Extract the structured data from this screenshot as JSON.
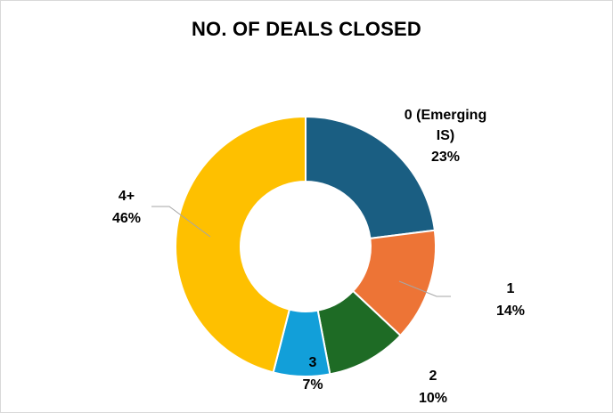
{
  "chart_data": {
    "type": "pie",
    "variant": "doughnut",
    "title": "NO. OF DEALS CLOSED",
    "slices": [
      {
        "category": "0 (Emerging",
        "category_line2": "IS)",
        "value_label": "23%",
        "value": 23,
        "color": "#1a5e82"
      },
      {
        "category": "1",
        "value_label": "14%",
        "value": 14,
        "color": "#ed7436"
      },
      {
        "category": "2",
        "value_label": "10%",
        "value": 10,
        "color": "#1e6b25"
      },
      {
        "category": "3",
        "value_label": "7%",
        "value": 7,
        "color": "#129fd9"
      },
      {
        "category": "4+",
        "value_label": "46%",
        "value": 46,
        "color": "#fec000"
      }
    ],
    "legend": "none"
  }
}
